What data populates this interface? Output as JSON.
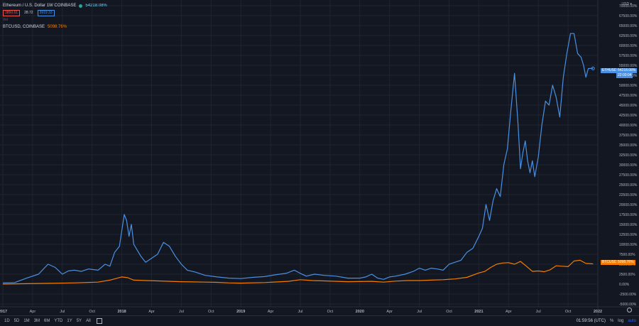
{
  "legend": {
    "title": "Ethereum / U.S. Dollar  1W  COINBASE",
    "change_pct": "54218.08%",
    "price_low": "3850.61",
    "spread": "28.72",
    "price_high": "3919.33",
    "volume_label": "Vol",
    "comparison": "BTCUSD, COINBASE",
    "comparison_pct": "5098.76%"
  },
  "axis": {
    "currency": "USD",
    "mode": "70000.00%"
  },
  "price_tags": {
    "eth_symbol": "ETHUSD",
    "eth_value": "54218.08%",
    "eth_countdown": "22:00:04",
    "btc_symbol": "BTCUSD",
    "btc_value": "5098.76%"
  },
  "bottom": {
    "ranges": [
      "1D",
      "5D",
      "1M",
      "3M",
      "6M",
      "YTD",
      "1Y",
      "5Y",
      "All"
    ],
    "clock": "01:59:56 (UTC)",
    "pct": "%",
    "log": "log",
    "auto": "auto"
  },
  "colors": {
    "eth": "#4a90e2",
    "btc": "#f57c00",
    "bg": "#131722",
    "grid": "#1f2430"
  },
  "chart_data": {
    "type": "line",
    "ylabel": "",
    "ylim": [
      -5000,
      70000
    ],
    "y_ticks": [
      -5000,
      -2500,
      0,
      2500,
      5000,
      7500,
      10000,
      12500,
      15000,
      17500,
      20000,
      22500,
      25000,
      27500,
      30000,
      32500,
      35000,
      37500,
      40000,
      42500,
      45000,
      47500,
      50000,
      52500,
      55000,
      57500,
      60000,
      62500,
      65000,
      67500,
      70000
    ],
    "y_tick_labels": [
      "-5000.00%",
      "-2500.00%",
      "0.00%",
      "2500.00%",
      "5000.00%",
      "7500.00%",
      "10000.00%",
      "12500.00%",
      "15000.00%",
      "17500.00%",
      "20000.00%",
      "22500.00%",
      "25000.00%",
      "27500.00%",
      "30000.00%",
      "32500.00%",
      "35000.00%",
      "37500.00%",
      "40000.00%",
      "42500.00%",
      "45000.00%",
      "47500.00%",
      "50000.00%",
      "52500.00%",
      "55000.00%",
      "57500.00%",
      "60000.00%",
      "62500.00%",
      "65000.00%",
      "67500.00%",
      "70000.00%"
    ],
    "x_ticks": [
      2017.0,
      2017.25,
      2017.5,
      2017.75,
      2018.0,
      2018.25,
      2018.5,
      2018.75,
      2019.0,
      2019.25,
      2019.5,
      2019.75,
      2020.0,
      2020.25,
      2020.5,
      2020.75,
      2021.0,
      2021.25,
      2021.5,
      2021.75,
      2022.0
    ],
    "x_tick_labels": [
      "2017",
      "Apr",
      "Jul",
      "Oct",
      "2018",
      "Apr",
      "Jul",
      "Oct",
      "2019",
      "Apr",
      "Jul",
      "Oct",
      "2020",
      "Apr",
      "Jul",
      "Oct",
      "2021",
      "Apr",
      "Jul",
      "Oct",
      "2022"
    ],
    "xlim": [
      2017.0,
      2022.0
    ],
    "series": [
      {
        "name": "ETHUSD",
        "x": [
          2017.0,
          2017.1,
          2017.2,
          2017.3,
          2017.38,
          2017.44,
          2017.5,
          2017.55,
          2017.6,
          2017.66,
          2017.72,
          2017.8,
          2017.86,
          2017.9,
          2017.94,
          2017.98,
          2018.02,
          2018.04,
          2018.06,
          2018.08,
          2018.1,
          2018.12,
          2018.16,
          2018.2,
          2018.25,
          2018.3,
          2018.35,
          2018.4,
          2018.45,
          2018.5,
          2018.55,
          2018.62,
          2018.7,
          2018.8,
          2018.9,
          2019.0,
          2019.1,
          2019.2,
          2019.3,
          2019.38,
          2019.45,
          2019.5,
          2019.55,
          2019.62,
          2019.7,
          2019.8,
          2019.9,
          2020.0,
          2020.05,
          2020.1,
          2020.15,
          2020.2,
          2020.25,
          2020.3,
          2020.38,
          2020.45,
          2020.5,
          2020.55,
          2020.6,
          2020.65,
          2020.7,
          2020.75,
          2020.8,
          2020.85,
          2020.9,
          2020.95,
          2021.0,
          2021.03,
          2021.06,
          2021.09,
          2021.12,
          2021.15,
          2021.18,
          2021.21,
          2021.24,
          2021.27,
          2021.3,
          2021.33,
          2021.35,
          2021.37,
          2021.39,
          2021.41,
          2021.43,
          2021.45,
          2021.47,
          2021.5,
          2021.53,
          2021.56,
          2021.59,
          2021.62,
          2021.65,
          2021.68,
          2021.71,
          2021.74,
          2021.77,
          2021.8,
          2021.83,
          2021.86,
          2021.88,
          2021.9,
          2021.92,
          2021.94,
          2021.96
        ],
        "values": [
          300,
          400,
          1500,
          2500,
          5000,
          4200,
          2500,
          3300,
          3500,
          3200,
          3800,
          3500,
          5000,
          4500,
          8000,
          9500,
          17500,
          16000,
          12000,
          15000,
          10000,
          9000,
          7000,
          5500,
          6500,
          7500,
          10500,
          9500,
          7000,
          5000,
          3500,
          3000,
          2200,
          1800,
          1500,
          1400,
          1700,
          1900,
          2400,
          2700,
          3500,
          2700,
          2000,
          2500,
          2200,
          2000,
          1500,
          1500,
          1800,
          2500,
          1500,
          1200,
          1800,
          2000,
          2500,
          3200,
          4000,
          3500,
          4000,
          3800,
          3500,
          5000,
          5500,
          6000,
          8000,
          9000,
          12000,
          14000,
          20000,
          16000,
          21000,
          24000,
          22000,
          30000,
          34000,
          44000,
          53000,
          40000,
          29000,
          33000,
          36000,
          31000,
          28000,
          31000,
          27000,
          32000,
          40000,
          46000,
          45000,
          50000,
          47000,
          42000,
          52000,
          58000,
          63000,
          63000,
          58000,
          57000,
          55000,
          52000,
          54200,
          54218,
          54218
        ],
        "color": "#4a90e2"
      },
      {
        "name": "BTCUSD",
        "x": [
          2017.0,
          2017.2,
          2017.4,
          2017.6,
          2017.8,
          2017.9,
          2018.0,
          2018.05,
          2018.1,
          2018.2,
          2018.3,
          2018.4,
          2018.5,
          2018.6,
          2018.7,
          2018.8,
          2018.9,
          2019.0,
          2019.2,
          2019.4,
          2019.5,
          2019.6,
          2019.7,
          2019.8,
          2019.9,
          2020.0,
          2020.1,
          2020.2,
          2020.3,
          2020.4,
          2020.5,
          2020.6,
          2020.7,
          2020.8,
          2020.9,
          2021.0,
          2021.05,
          2021.1,
          2021.15,
          2021.2,
          2021.25,
          2021.3,
          2021.35,
          2021.4,
          2021.45,
          2021.5,
          2021.55,
          2021.6,
          2021.65,
          2021.7,
          2021.75,
          2021.8,
          2021.85,
          2021.9,
          2021.96
        ],
        "values": [
          0,
          100,
          200,
          300,
          500,
          1000,
          1800,
          1600,
          1000,
          900,
          800,
          700,
          600,
          550,
          500,
          450,
          300,
          250,
          400,
          700,
          1100,
          900,
          800,
          700,
          600,
          650,
          700,
          500,
          750,
          900,
          900,
          1000,
          1100,
          1300,
          1700,
          2800,
          3200,
          4200,
          5000,
          5300,
          5400,
          5000,
          5700,
          4500,
          3200,
          3300,
          3100,
          3600,
          4600,
          4500,
          4400,
          5800,
          6000,
          5200,
          5098
        ],
        "color": "#f57c00"
      }
    ],
    "grid": true,
    "legend": "top-left"
  }
}
